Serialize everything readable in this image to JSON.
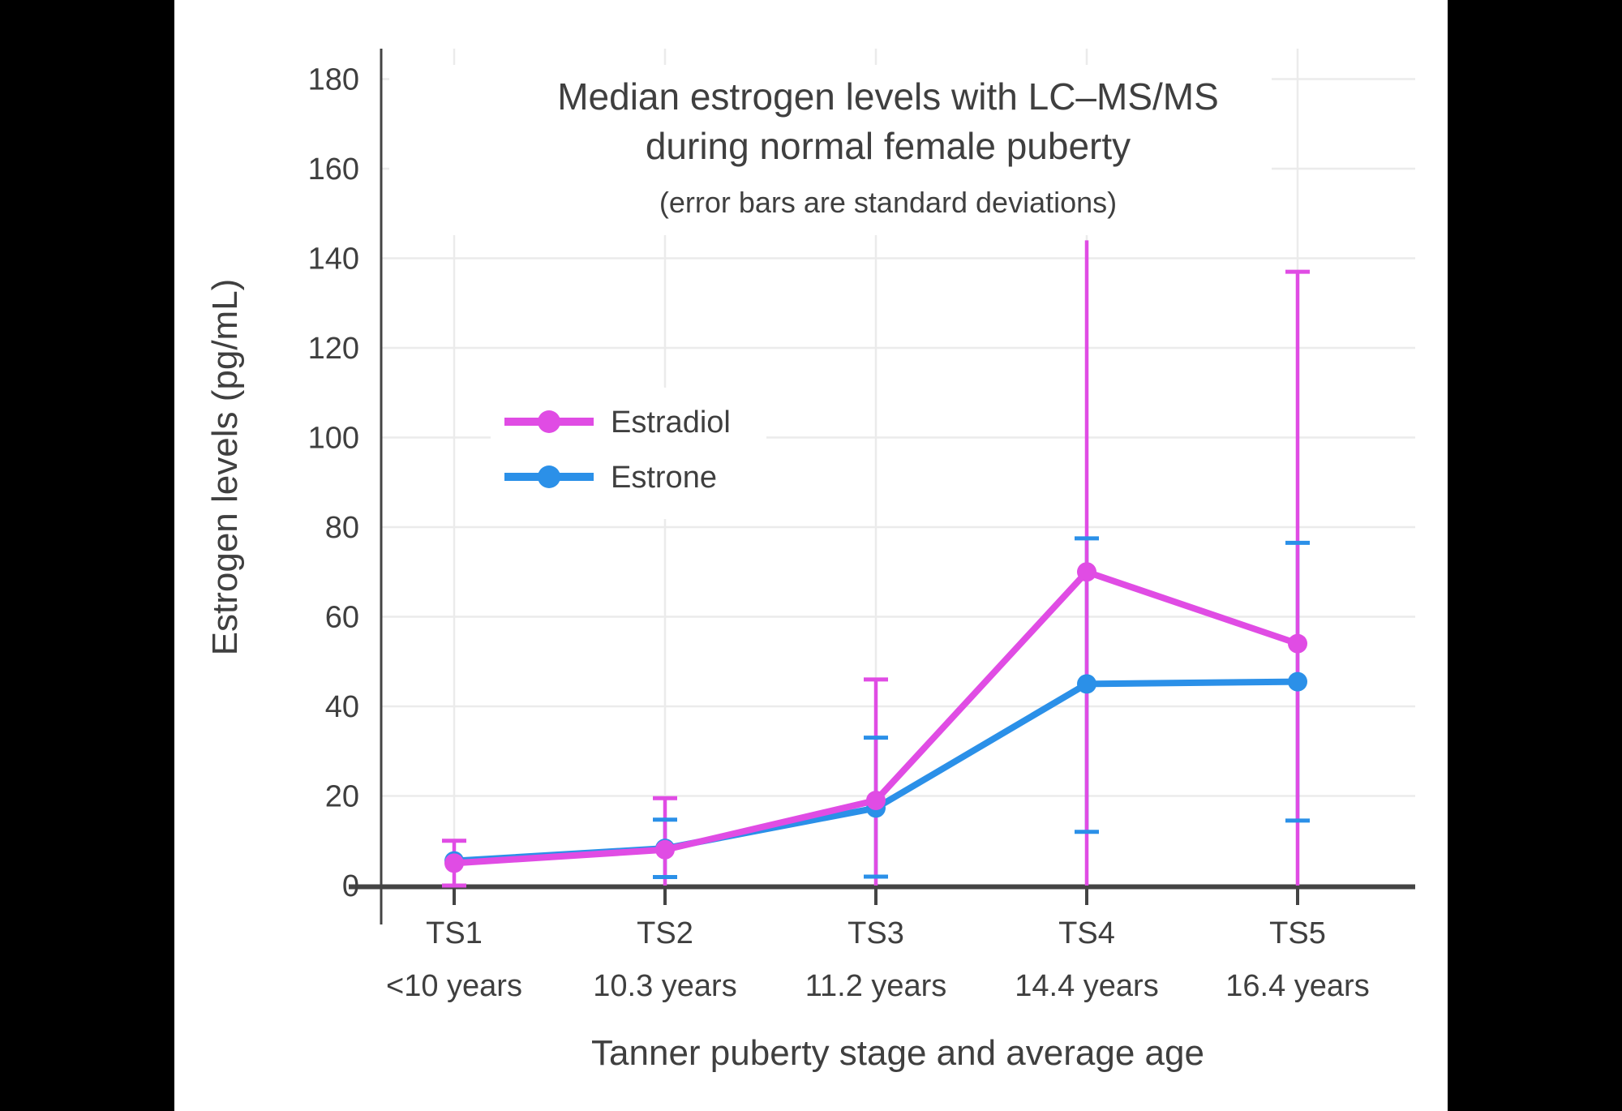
{
  "page": {
    "background": "#000000",
    "panel_background": "#ffffff"
  },
  "chart_data": {
    "type": "line",
    "title_lines": [
      "Median estrogen levels with LC–MS/MS",
      "during normal female puberty"
    ],
    "subtitle": "(error bars are standard deviations)",
    "xlabel": "Tanner puberty stage and average age",
    "ylabel": "Estrogen levels (pg/mL)",
    "categories": [
      {
        "stage": "TS1",
        "age": "<10 years"
      },
      {
        "stage": "TS2",
        "age": "10.3 years"
      },
      {
        "stage": "TS3",
        "age": "11.2 years"
      },
      {
        "stage": "TS4",
        "age": "14.4 years"
      },
      {
        "stage": "TS5",
        "age": "16.4 years"
      }
    ],
    "y_ticks": [
      0,
      20,
      40,
      60,
      80,
      100,
      120,
      140,
      160,
      180
    ],
    "ylim": [
      0,
      187
    ],
    "grid": true,
    "legend_position": "inside-upper-left",
    "series": [
      {
        "name": "Estradiol",
        "color": "#e04ce4",
        "values": [
          5,
          8,
          19,
          70,
          54
        ],
        "error_high": [
          10,
          19.5,
          46,
          144,
          137
        ],
        "error_low": [
          0,
          0,
          0,
          0,
          0
        ],
        "cap_high": [
          true,
          true,
          true,
          false,
          true
        ],
        "cap_low": [
          true,
          false,
          false,
          false,
          false
        ]
      },
      {
        "name": "Estrone",
        "color": "#2b90e8",
        "values": [
          5.5,
          8.3,
          17.3,
          45,
          45.5
        ],
        "error_high": [
          null,
          14.7,
          33,
          77.5,
          76.5
        ],
        "error_low": [
          null,
          1.9,
          2,
          12,
          14.5
        ],
        "cap_high": [
          false,
          true,
          true,
          true,
          true
        ],
        "cap_low": [
          false,
          true,
          true,
          true,
          true
        ]
      }
    ],
    "axis_color": "#444444",
    "grid_color": "#ebebeb",
    "text_color": "#3f3f3f"
  }
}
